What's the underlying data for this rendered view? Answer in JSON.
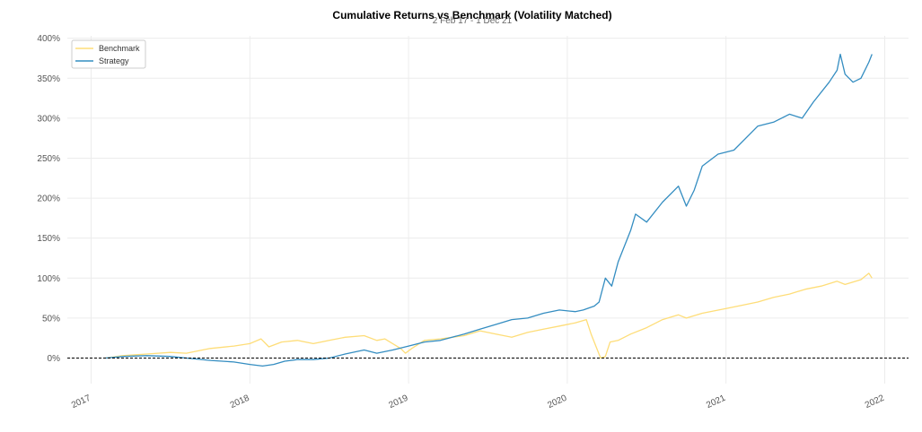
{
  "chart_data": {
    "type": "line",
    "title": "Cumulative Returns vs Benchmark (Volatility Matched)",
    "subtitle": "2 Feb 17 - 1 Dec 21",
    "xlabel": "",
    "ylabel": "",
    "x_ticks": [
      "2017",
      "2018",
      "2019",
      "2020",
      "2021",
      "2022"
    ],
    "x_range": [
      2016.85,
      2022.15
    ],
    "y_ticks": [
      "0%",
      "50%",
      "100%",
      "150%",
      "200%",
      "250%",
      "300%",
      "350%",
      "400%"
    ],
    "y_tick_values": [
      0,
      50,
      100,
      150,
      200,
      250,
      300,
      350,
      400
    ],
    "ylim": [
      -32,
      403
    ],
    "grid": true,
    "legend_position": "top-left",
    "baseline": 0,
    "series": [
      {
        "name": "Benchmark",
        "color": "#fedd78",
        "x": [
          2017.09,
          2017.2,
          2017.35,
          2017.5,
          2017.6,
          2017.75,
          2017.9,
          2018.0,
          2018.07,
          2018.08,
          2018.12,
          2018.2,
          2018.3,
          2018.4,
          2018.5,
          2018.6,
          2018.72,
          2018.8,
          2018.85,
          2018.95,
          2018.98,
          2019.02,
          2019.1,
          2019.2,
          2019.35,
          2019.45,
          2019.55,
          2019.65,
          2019.75,
          2019.85,
          2019.95,
          2020.05,
          2020.12,
          2020.15,
          2020.18,
          2020.21,
          2020.24,
          2020.27,
          2020.32,
          2020.4,
          2020.5,
          2020.6,
          2020.7,
          2020.75,
          2020.85,
          2021.0,
          2021.1,
          2021.2,
          2021.3,
          2021.4,
          2021.5,
          2021.6,
          2021.7,
          2021.75,
          2021.85,
          2021.9,
          2021.92
        ],
        "y": [
          0,
          3,
          5,
          7,
          6,
          12,
          15,
          18,
          24,
          22,
          14,
          20,
          22,
          18,
          22,
          26,
          28,
          22,
          24,
          12,
          6,
          12,
          22,
          24,
          28,
          34,
          30,
          26,
          32,
          36,
          40,
          44,
          48,
          30,
          15,
          0,
          2,
          20,
          22,
          30,
          38,
          48,
          54,
          50,
          56,
          62,
          66,
          70,
          76,
          80,
          86,
          90,
          96,
          92,
          98,
          106,
          100
        ]
      },
      {
        "name": "Strategy",
        "color": "#348dc1",
        "x": [
          2017.09,
          2017.2,
          2017.35,
          2017.5,
          2017.6,
          2017.75,
          2017.9,
          2018.0,
          2018.08,
          2018.15,
          2018.22,
          2018.3,
          2018.4,
          2018.5,
          2018.6,
          2018.72,
          2018.8,
          2018.9,
          2019.0,
          2019.1,
          2019.2,
          2019.35,
          2019.45,
          2019.55,
          2019.65,
          2019.75,
          2019.85,
          2019.95,
          2020.05,
          2020.1,
          2020.17,
          2020.2,
          2020.24,
          2020.28,
          2020.32,
          2020.4,
          2020.43,
          2020.5,
          2020.6,
          2020.7,
          2020.75,
          2020.8,
          2020.85,
          2020.95,
          2021.05,
          2021.15,
          2021.2,
          2021.3,
          2021.4,
          2021.48,
          2021.55,
          2021.65,
          2021.7,
          2021.72,
          2021.75,
          2021.8,
          2021.85,
          2021.9,
          2021.92
        ],
        "y": [
          0,
          2,
          3,
          2,
          0,
          -3,
          -5,
          -8,
          -10,
          -8,
          -4,
          -2,
          -2,
          0,
          5,
          10,
          6,
          10,
          15,
          20,
          22,
          30,
          36,
          42,
          48,
          50,
          56,
          60,
          58,
          60,
          65,
          70,
          100,
          90,
          120,
          160,
          180,
          170,
          195,
          215,
          190,
          210,
          240,
          255,
          260,
          280,
          290,
          295,
          305,
          300,
          320,
          345,
          360,
          380,
          355,
          345,
          350,
          370,
          380
        ]
      }
    ]
  }
}
